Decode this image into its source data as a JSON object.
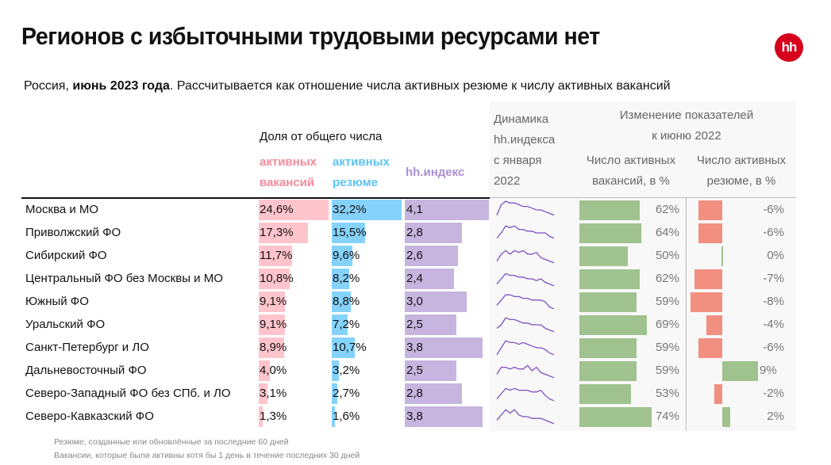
{
  "title": "Регионов с избыточными трудовыми ресурсами нет",
  "logo": "hh",
  "subtitle": {
    "prefix": "Россия, ",
    "bold": "июнь 2023 года",
    "rest": ". Рассчитывается как отношение числа активных резюме к числу активных вакансий"
  },
  "headers": {
    "share": "Доля от общего числа",
    "vacancies": [
      "активных",
      "вакансий"
    ],
    "resumes": [
      "активных",
      "резюме"
    ],
    "hh_index": "hh.индекс",
    "dynamics": [
      "Динамика",
      "hh.индекса",
      "с января",
      "2022"
    ],
    "change": [
      "Изменение показателей",
      "к июню 2022"
    ],
    "vac_change": [
      "Число активных",
      "вакансий, в %"
    ],
    "res_change": [
      "Число активных",
      "резюме, в %"
    ]
  },
  "colors": {
    "vacancies": "#ffc4cc",
    "resumes": "#85d2fb",
    "hh_index": "#c6b5de",
    "positive": "#a0c28e",
    "negative": "#f28f80",
    "sparkline": "#7b52c4",
    "brand": "#d6001c"
  },
  "chart_data": {
    "type": "table",
    "title": "Регионов с избыточными трудовыми ресурсами нет",
    "columns": [
      "Регион",
      "Доля активных вакансий, %",
      "Доля активных резюме, %",
      "hh.индекс",
      "Динамика hh.индекса с января 2022",
      "Изменение числа активных вакансий к июню 2022, %",
      "Изменение числа активных резюме к июню 2022, %"
    ],
    "rows": [
      {
        "region": "Москва и МО",
        "vac_share": 24.6,
        "vac_label": "24,6%",
        "res_share": 32.2,
        "res_label": "32,2%",
        "hh_index": 4.1,
        "hh_label": "4,1",
        "vac_change": 62,
        "vac_change_label": "62%",
        "res_change": -6,
        "res_change_label": "-6%",
        "spark": [
          2,
          8,
          10,
          9,
          9,
          8,
          7,
          7,
          6,
          5,
          5,
          4,
          3,
          2
        ]
      },
      {
        "region": "Приволжский ФО",
        "vac_share": 17.3,
        "vac_label": "17,3%",
        "res_share": 15.5,
        "res_label": "15,5%",
        "hh_index": 2.8,
        "hh_label": "2,8",
        "vac_change": 64,
        "vac_change_label": "64%",
        "res_change": -6,
        "res_change_label": "-6%",
        "spark": [
          2,
          5,
          9,
          8,
          9,
          7,
          7,
          6,
          6,
          5,
          5,
          5,
          3,
          2
        ]
      },
      {
        "region": "Сибирский ФО",
        "vac_share": 11.7,
        "vac_label": "11,7%",
        "res_share": 9.6,
        "res_label": "9,6%",
        "hh_index": 2.6,
        "hh_label": "2,6",
        "vac_change": 50,
        "vac_change_label": "50%",
        "res_change": 0,
        "res_change_label": "0%",
        "spark": [
          2,
          6,
          8,
          6,
          8,
          7,
          8,
          6,
          6,
          7,
          4,
          3,
          2,
          1
        ]
      },
      {
        "region": "Центральный ФО без Москвы и МО",
        "vac_share": 10.8,
        "vac_label": "10,8%",
        "res_share": 8.2,
        "res_label": "8,2%",
        "hh_index": 2.4,
        "hh_label": "2,4",
        "vac_change": 62,
        "vac_change_label": "62%",
        "res_change": -7,
        "res_change_label": "-7%",
        "spark": [
          2,
          5,
          8,
          7,
          7,
          6,
          6,
          5,
          5,
          4,
          5,
          3,
          2,
          1
        ]
      },
      {
        "region": "Южный ФО",
        "vac_share": 9.1,
        "vac_label": "9,1%",
        "res_share": 8.8,
        "res_label": "8,8%",
        "hh_index": 3.0,
        "hh_label": "3,0",
        "vac_change": 59,
        "vac_change_label": "59%",
        "res_change": -8,
        "res_change_label": "-8%",
        "spark": [
          3,
          6,
          9,
          9,
          8,
          8,
          7,
          7,
          6,
          6,
          6,
          5,
          2,
          1
        ]
      },
      {
        "region": "Уральский ФО",
        "vac_share": 9.1,
        "vac_label": "9,1%",
        "res_share": 7.2,
        "res_label": "7,2%",
        "hh_index": 2.5,
        "hh_label": "2,5",
        "vac_change": 69,
        "vac_change_label": "69%",
        "res_change": -4,
        "res_change_label": "-4%",
        "spark": [
          3,
          5,
          9,
          8,
          8,
          7,
          6,
          6,
          5,
          5,
          5,
          3,
          2,
          1
        ]
      },
      {
        "region": "Санкт-Петербург и ЛО",
        "vac_share": 8.9,
        "vac_label": "8,9%",
        "res_share": 10.7,
        "res_label": "10,7%",
        "hh_index": 3.8,
        "hh_label": "3,8",
        "vac_change": 59,
        "vac_change_label": "59%",
        "res_change": -6,
        "res_change_label": "-6%",
        "spark": [
          1,
          5,
          9,
          8,
          8,
          7,
          8,
          7,
          6,
          5,
          5,
          4,
          2,
          1
        ]
      },
      {
        "region": "Дальневосточный ФО",
        "vac_share": 4.0,
        "vac_label": "4,0%",
        "res_share": 3.2,
        "res_label": "3,2%",
        "hh_index": 2.5,
        "hh_label": "2,5",
        "vac_change": 59,
        "vac_change_label": "59%",
        "res_change": 9,
        "res_change_label": "9%",
        "spark": [
          3,
          7,
          7,
          6,
          7,
          6,
          6,
          8,
          5,
          7,
          4,
          3,
          2,
          1
        ]
      },
      {
        "region": "Северо-Западный ФО без СПб. и ЛО",
        "vac_share": 3.1,
        "vac_label": "3,1%",
        "res_share": 2.7,
        "res_label": "2,7%",
        "hh_index": 2.8,
        "hh_label": "2,8",
        "vac_change": 53,
        "vac_change_label": "53%",
        "res_change": -2,
        "res_change_label": "-2%",
        "spark": [
          2,
          5,
          8,
          7,
          8,
          7,
          7,
          7,
          6,
          6,
          7,
          4,
          2,
          1
        ]
      },
      {
        "region": "Северо-Кавказский ФО",
        "vac_share": 1.3,
        "vac_label": "1,3%",
        "res_share": 1.6,
        "res_label": "1,6%",
        "hh_index": 3.8,
        "hh_label": "3,8",
        "vac_change": 74,
        "vac_change_label": "74%",
        "res_change": 2,
        "res_change_label": "2%",
        "spark": [
          3,
          6,
          9,
          7,
          9,
          6,
          5,
          5,
          4,
          4,
          4,
          3,
          2,
          1
        ]
      }
    ]
  },
  "notes": [
    "Резюме, созданные или обновлённые за последние 60 дней",
    "Вакансии, которые были активны хотя бы 1 день в течение последних 30 дней"
  ]
}
